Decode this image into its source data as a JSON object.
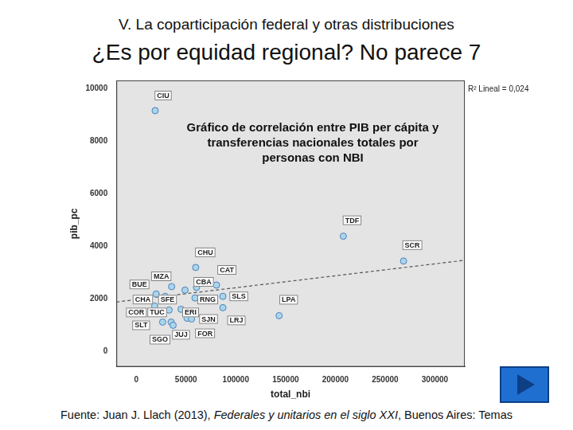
{
  "title": "V. La coparticipación federal y otras distribuciones",
  "subtitle": "¿Es por equidad regional? No parece 7",
  "source": [
    {
      "text": "Fuente: Juan J. Llach (2013), ",
      "italic": false
    },
    {
      "text": "Federales y unitarios en el siglo XXI",
      "italic": true
    },
    {
      "text": ", Buenos Aires: Temas",
      "italic": false
    }
  ],
  "chart_data": {
    "type": "scatter",
    "annotations": [
      "Gráfico de correlación entre PIB per cápita y transferencias nacionales totales por personas con NBI",
      "R² Lineal = 0,024"
    ],
    "x_label": "total_nbi",
    "y_label": "pib_pc",
    "xlim": [
      -20000,
      330000
    ],
    "xticks": [
      0,
      50000,
      100000,
      150000,
      200000,
      250000,
      300000
    ],
    "ylim": [
      -600,
      10300
    ],
    "yticks": [
      0,
      2000,
      4000,
      6000,
      8000,
      10000
    ],
    "grid": false,
    "series": [
      {
        "type": "scatter",
        "color": "#a9d6ea",
        "marker": "circle",
        "labels": [
          "CIU",
          "TDF",
          "SCR",
          "CHU",
          "CAT",
          "MZA",
          "BUE",
          "CBA",
          "CHA",
          "SFE",
          "RNG",
          "SLS",
          "LPA",
          "ERI",
          "SJN",
          "LRJ",
          "COR",
          "TUC",
          "SLT",
          "SGO",
          "JUJ",
          "FOR"
        ],
        "x": [
          19000,
          208000,
          268500,
          59700,
          80600,
          35500,
          20000,
          60500,
          29000,
          49000,
          59000,
          87000,
          143500,
          45000,
          51000,
          87000,
          18500,
          33000,
          26500,
          35000,
          37000,
          55500
        ],
        "values": [
          9150,
          4370,
          3425,
          3180,
          2510,
          2450,
          2170,
          2420,
          2080,
          2320,
          2020,
          2080,
          1345,
          1590,
          1250,
          1650,
          1710,
          1560,
          1100,
          1100,
          980,
          1220
        ]
      },
      {
        "type": "line",
        "line_style": "dashed",
        "color": "#555555",
        "x": [
          -20000,
          330000
        ],
        "values": [
          1865,
          3455
        ]
      }
    ]
  }
}
